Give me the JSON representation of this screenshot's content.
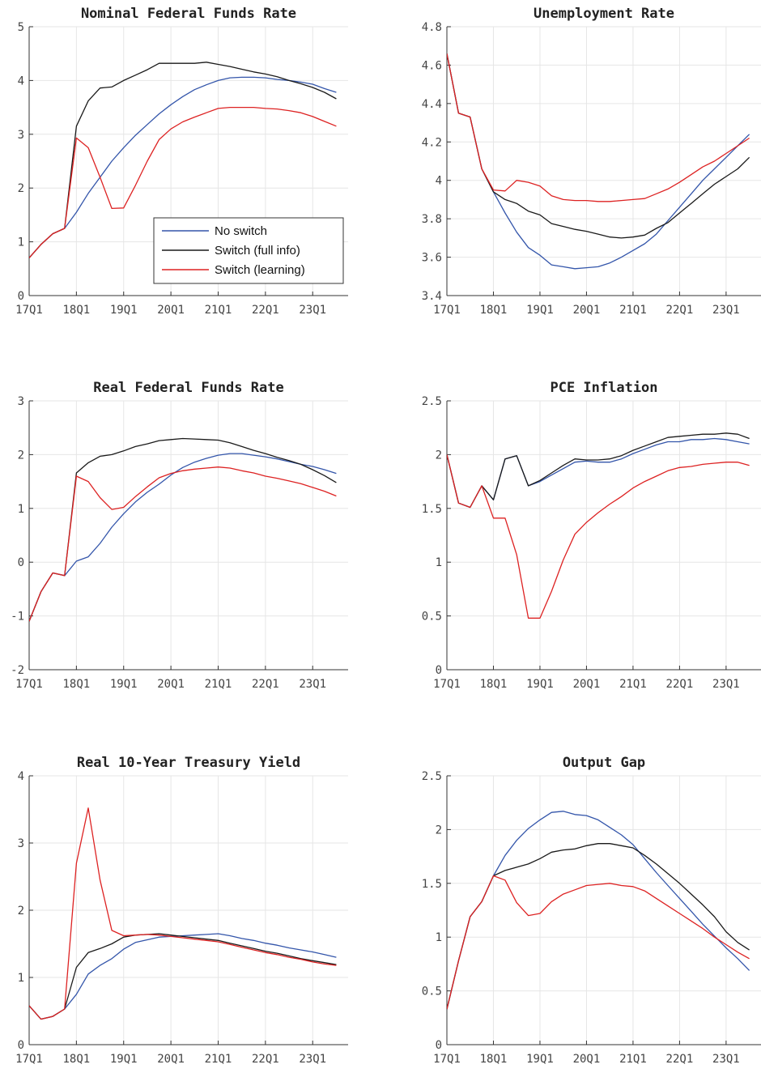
{
  "legend": {
    "entries": [
      {
        "label": "No switch",
        "color": "#3355aa"
      },
      {
        "label": "Switch (full info)",
        "color": "#1a1a1a"
      },
      {
        "label": "Switch (learning)",
        "color": "#dd2222"
      }
    ],
    "placement": "lower-right of first panel"
  },
  "chart_data": [
    {
      "type": "line",
      "title": "Nominal Federal Funds Rate",
      "x": [
        0,
        1,
        2,
        3,
        4,
        5,
        6,
        7,
        8,
        9,
        10,
        11,
        12,
        13,
        14,
        15,
        16,
        17,
        18,
        19,
        20,
        21,
        22,
        23,
        24,
        25,
        26
      ],
      "xticks": [
        0,
        4,
        8,
        12,
        16,
        20,
        24
      ],
      "xtick_labels": [
        "17Q1",
        "18Q1",
        "19Q1",
        "20Q1",
        "21Q1",
        "22Q1",
        "23Q1"
      ],
      "ylim": [
        0,
        5
      ],
      "yticks": [
        0,
        1,
        2,
        3,
        4,
        5
      ],
      "ytick_labels": [
        "0",
        "1",
        "2",
        "3",
        "4",
        "5"
      ],
      "grid": true,
      "series": [
        {
          "name": "No switch",
          "color": "#3355aa",
          "values": [
            0.7,
            0.95,
            1.15,
            1.25,
            1.55,
            1.9,
            2.2,
            2.5,
            2.75,
            2.98,
            3.18,
            3.38,
            3.55,
            3.7,
            3.83,
            3.92,
            4.0,
            4.05,
            4.06,
            4.06,
            4.05,
            4.02,
            4.0,
            3.97,
            3.93,
            3.85,
            3.78
          ]
        },
        {
          "name": "Switch (full info)",
          "color": "#1a1a1a",
          "values": [
            0.7,
            0.95,
            1.15,
            1.25,
            3.15,
            3.62,
            3.86,
            3.88,
            4.0,
            4.1,
            4.2,
            4.32,
            4.32,
            4.32,
            4.32,
            4.34,
            4.3,
            4.26,
            4.21,
            4.16,
            4.12,
            4.07,
            4.0,
            3.94,
            3.87,
            3.78,
            3.66
          ]
        },
        {
          "name": "Switch (learning)",
          "color": "#dd2222",
          "values": [
            0.7,
            0.95,
            1.15,
            1.25,
            2.93,
            2.75,
            2.2,
            1.62,
            1.63,
            2.05,
            2.5,
            2.9,
            3.1,
            3.23,
            3.32,
            3.4,
            3.48,
            3.5,
            3.5,
            3.5,
            3.48,
            3.47,
            3.44,
            3.4,
            3.33,
            3.24,
            3.15
          ]
        }
      ]
    },
    {
      "type": "line",
      "title": "Unemployment Rate",
      "x": [
        0,
        1,
        2,
        3,
        4,
        5,
        6,
        7,
        8,
        9,
        10,
        11,
        12,
        13,
        14,
        15,
        16,
        17,
        18,
        19,
        20,
        21,
        22,
        23,
        24,
        25,
        26
      ],
      "xticks": [
        0,
        4,
        8,
        12,
        16,
        20,
        24
      ],
      "xtick_labels": [
        "17Q1",
        "18Q1",
        "19Q1",
        "20Q1",
        "21Q1",
        "22Q1",
        "23Q1"
      ],
      "ylim": [
        3.4,
        4.8
      ],
      "yticks": [
        3.4,
        3.6,
        3.8,
        4.0,
        4.2,
        4.4,
        4.6,
        4.8
      ],
      "ytick_labels": [
        "3.4",
        "3.6",
        "3.8",
        "4",
        "4.2",
        "4.4",
        "4.6",
        "4.8"
      ],
      "grid": true,
      "series": [
        {
          "name": "No switch",
          "color": "#3355aa",
          "values": [
            4.66,
            4.35,
            4.33,
            4.06,
            3.94,
            3.83,
            3.73,
            3.65,
            3.61,
            3.56,
            3.55,
            3.54,
            3.545,
            3.55,
            3.57,
            3.6,
            3.635,
            3.67,
            3.72,
            3.79,
            3.86,
            3.93,
            4.0,
            4.06,
            4.12,
            4.18,
            4.24
          ]
        },
        {
          "name": "Switch (full info)",
          "color": "#1a1a1a",
          "values": [
            4.66,
            4.35,
            4.33,
            4.06,
            3.94,
            3.9,
            3.88,
            3.84,
            3.82,
            3.775,
            3.76,
            3.745,
            3.735,
            3.72,
            3.705,
            3.7,
            3.705,
            3.715,
            3.75,
            3.78,
            3.83,
            3.88,
            3.93,
            3.98,
            4.02,
            4.06,
            4.12
          ]
        },
        {
          "name": "Switch (learning)",
          "color": "#dd2222",
          "values": [
            4.66,
            4.35,
            4.33,
            4.06,
            3.95,
            3.945,
            4.0,
            3.99,
            3.97,
            3.92,
            3.9,
            3.895,
            3.895,
            3.89,
            3.89,
            3.895,
            3.9,
            3.905,
            3.93,
            3.955,
            3.99,
            4.03,
            4.07,
            4.1,
            4.14,
            4.18,
            4.22
          ]
        }
      ]
    },
    {
      "type": "line",
      "title": "Real Federal Funds Rate",
      "x": [
        0,
        1,
        2,
        3,
        4,
        5,
        6,
        7,
        8,
        9,
        10,
        11,
        12,
        13,
        14,
        15,
        16,
        17,
        18,
        19,
        20,
        21,
        22,
        23,
        24,
        25,
        26
      ],
      "xticks": [
        0,
        4,
        8,
        12,
        16,
        20,
        24
      ],
      "xtick_labels": [
        "17Q1",
        "18Q1",
        "19Q1",
        "20Q1",
        "21Q1",
        "22Q1",
        "23Q1"
      ],
      "ylim": [
        -2,
        3
      ],
      "yticks": [
        -2,
        -1,
        0,
        1,
        2,
        3
      ],
      "ytick_labels": [
        "-2",
        "-1",
        "0",
        "1",
        "2",
        "3"
      ],
      "grid": true,
      "series": [
        {
          "name": "No switch",
          "color": "#3355aa",
          "values": [
            -1.1,
            -0.55,
            -0.2,
            -0.25,
            0.02,
            0.1,
            0.35,
            0.65,
            0.9,
            1.12,
            1.3,
            1.45,
            1.62,
            1.76,
            1.86,
            1.93,
            1.99,
            2.02,
            2.02,
            1.99,
            1.96,
            1.92,
            1.87,
            1.82,
            1.78,
            1.72,
            1.65
          ]
        },
        {
          "name": "Switch (full info)",
          "color": "#1a1a1a",
          "values": [
            -1.1,
            -0.55,
            -0.2,
            -0.25,
            1.66,
            1.85,
            1.97,
            2.0,
            2.07,
            2.15,
            2.2,
            2.26,
            2.28,
            2.3,
            2.29,
            2.28,
            2.27,
            2.22,
            2.15,
            2.08,
            2.02,
            1.95,
            1.89,
            1.82,
            1.72,
            1.61,
            1.48
          ]
        },
        {
          "name": "Switch (learning)",
          "color": "#dd2222",
          "values": [
            -1.1,
            -0.55,
            -0.2,
            -0.25,
            1.6,
            1.5,
            1.2,
            0.98,
            1.02,
            1.22,
            1.4,
            1.57,
            1.65,
            1.7,
            1.73,
            1.75,
            1.77,
            1.75,
            1.7,
            1.66,
            1.6,
            1.56,
            1.51,
            1.46,
            1.39,
            1.32,
            1.23
          ]
        }
      ]
    },
    {
      "type": "line",
      "title": "PCE Inflation",
      "x": [
        0,
        1,
        2,
        3,
        4,
        5,
        6,
        7,
        8,
        9,
        10,
        11,
        12,
        13,
        14,
        15,
        16,
        17,
        18,
        19,
        20,
        21,
        22,
        23,
        24,
        25,
        26
      ],
      "xticks": [
        0,
        4,
        8,
        12,
        16,
        20,
        24
      ],
      "xtick_labels": [
        "17Q1",
        "18Q1",
        "19Q1",
        "20Q1",
        "21Q1",
        "22Q1",
        "23Q1"
      ],
      "ylim": [
        0,
        2.5
      ],
      "yticks": [
        0,
        0.5,
        1,
        1.5,
        2,
        2.5
      ],
      "ytick_labels": [
        "0",
        "0.5",
        "1",
        "1.5",
        "2",
        "2.5"
      ],
      "grid": true,
      "series": [
        {
          "name": "No switch",
          "color": "#3355aa",
          "values": [
            2.0,
            1.55,
            1.51,
            1.71,
            1.58,
            1.96,
            1.99,
            1.71,
            1.75,
            1.81,
            1.87,
            1.93,
            1.94,
            1.93,
            1.93,
            1.96,
            2.01,
            2.05,
            2.09,
            2.12,
            2.12,
            2.14,
            2.14,
            2.15,
            2.14,
            2.12,
            2.1
          ]
        },
        {
          "name": "Switch (full info)",
          "color": "#1a1a1a",
          "values": [
            2.0,
            1.55,
            1.51,
            1.71,
            1.58,
            1.96,
            1.99,
            1.71,
            1.76,
            1.83,
            1.9,
            1.96,
            1.95,
            1.95,
            1.96,
            1.99,
            2.04,
            2.08,
            2.12,
            2.16,
            2.17,
            2.18,
            2.19,
            2.19,
            2.2,
            2.19,
            2.15
          ]
        },
        {
          "name": "Switch (learning)",
          "color": "#dd2222",
          "values": [
            2.0,
            1.55,
            1.51,
            1.71,
            1.41,
            1.41,
            1.07,
            0.48,
            0.48,
            0.73,
            1.02,
            1.26,
            1.37,
            1.46,
            1.54,
            1.61,
            1.69,
            1.75,
            1.8,
            1.85,
            1.88,
            1.89,
            1.91,
            1.92,
            1.93,
            1.93,
            1.9
          ]
        }
      ]
    },
    {
      "type": "line",
      "title": "Real 10-Year Treasury Yield",
      "x": [
        0,
        1,
        2,
        3,
        4,
        5,
        6,
        7,
        8,
        9,
        10,
        11,
        12,
        13,
        14,
        15,
        16,
        17,
        18,
        19,
        20,
        21,
        22,
        23,
        24,
        25,
        26
      ],
      "xticks": [
        0,
        4,
        8,
        12,
        16,
        20,
        24
      ],
      "xtick_labels": [
        "17Q1",
        "18Q1",
        "19Q1",
        "20Q1",
        "21Q1",
        "22Q1",
        "23Q1"
      ],
      "ylim": [
        0,
        4
      ],
      "yticks": [
        0,
        1,
        2,
        3,
        4
      ],
      "ytick_labels": [
        "0",
        "1",
        "2",
        "3",
        "4"
      ],
      "grid": true,
      "series": [
        {
          "name": "No switch",
          "color": "#3355aa",
          "values": [
            0.58,
            0.38,
            0.42,
            0.53,
            0.75,
            1.05,
            1.18,
            1.28,
            1.42,
            1.52,
            1.56,
            1.6,
            1.61,
            1.62,
            1.63,
            1.64,
            1.65,
            1.62,
            1.58,
            1.55,
            1.51,
            1.48,
            1.44,
            1.41,
            1.38,
            1.34,
            1.3
          ]
        },
        {
          "name": "Switch (full info)",
          "color": "#1a1a1a",
          "values": [
            0.58,
            0.38,
            0.42,
            0.53,
            1.15,
            1.37,
            1.43,
            1.5,
            1.6,
            1.63,
            1.64,
            1.65,
            1.63,
            1.61,
            1.59,
            1.57,
            1.55,
            1.51,
            1.47,
            1.43,
            1.39,
            1.36,
            1.32,
            1.28,
            1.25,
            1.22,
            1.19
          ]
        },
        {
          "name": "Switch (learning)",
          "color": "#dd2222",
          "values": [
            0.58,
            0.38,
            0.42,
            0.53,
            2.7,
            3.52,
            2.45,
            1.7,
            1.62,
            1.63,
            1.64,
            1.63,
            1.61,
            1.59,
            1.57,
            1.55,
            1.53,
            1.49,
            1.45,
            1.41,
            1.37,
            1.34,
            1.3,
            1.27,
            1.23,
            1.2,
            1.18
          ]
        }
      ]
    },
    {
      "type": "line",
      "title": "Output Gap",
      "x": [
        0,
        1,
        2,
        3,
        4,
        5,
        6,
        7,
        8,
        9,
        10,
        11,
        12,
        13,
        14,
        15,
        16,
        17,
        18,
        19,
        20,
        21,
        22,
        23,
        24,
        25,
        26
      ],
      "xticks": [
        0,
        4,
        8,
        12,
        16,
        20,
        24
      ],
      "xtick_labels": [
        "17Q1",
        "18Q1",
        "19Q1",
        "20Q1",
        "21Q1",
        "22Q1",
        "23Q1"
      ],
      "ylim": [
        0,
        2.5
      ],
      "yticks": [
        0,
        0.5,
        1,
        1.5,
        2,
        2.5
      ],
      "ytick_labels": [
        "0",
        "0.5",
        "1",
        "1.5",
        "2",
        "2.5"
      ],
      "grid": true,
      "series": [
        {
          "name": "No switch",
          "color": "#3355aa",
          "values": [
            0.33,
            0.78,
            1.19,
            1.33,
            1.57,
            1.76,
            1.9,
            2.01,
            2.09,
            2.16,
            2.17,
            2.14,
            2.13,
            2.09,
            2.02,
            1.95,
            1.86,
            1.73,
            1.6,
            1.48,
            1.36,
            1.24,
            1.12,
            1.01,
            0.9,
            0.8,
            0.69
          ]
        },
        {
          "name": "Switch (full info)",
          "color": "#1a1a1a",
          "values": [
            0.33,
            0.78,
            1.19,
            1.33,
            1.57,
            1.62,
            1.65,
            1.68,
            1.73,
            1.79,
            1.81,
            1.82,
            1.85,
            1.87,
            1.87,
            1.85,
            1.83,
            1.76,
            1.68,
            1.59,
            1.5,
            1.4,
            1.3,
            1.19,
            1.05,
            0.95,
            0.88
          ]
        },
        {
          "name": "Switch (learning)",
          "color": "#dd2222",
          "values": [
            0.33,
            0.78,
            1.19,
            1.33,
            1.57,
            1.53,
            1.32,
            1.2,
            1.22,
            1.33,
            1.4,
            1.44,
            1.48,
            1.49,
            1.5,
            1.48,
            1.47,
            1.43,
            1.36,
            1.29,
            1.22,
            1.15,
            1.08,
            1.0,
            0.93,
            0.86,
            0.8
          ]
        }
      ]
    }
  ]
}
